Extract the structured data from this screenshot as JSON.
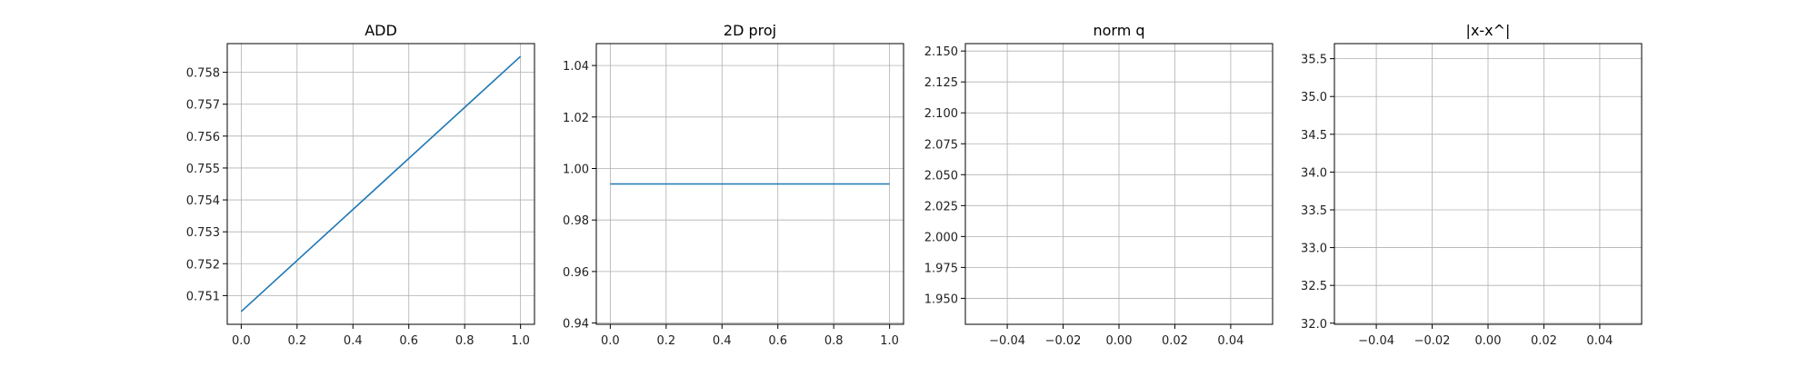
{
  "chart_data": [
    {
      "type": "line",
      "title": "ADD",
      "xlabel": "",
      "ylabel": "",
      "grid": true,
      "xlim": [
        -0.05,
        1.05
      ],
      "ylim": [
        0.7501,
        0.7589
      ],
      "x_ticks": [
        0.0,
        0.2,
        0.4,
        0.6,
        0.8,
        1.0
      ],
      "x_tick_labels": [
        "0.0",
        "0.2",
        "0.4",
        "0.6",
        "0.8",
        "1.0"
      ],
      "y_ticks": [
        0.751,
        0.752,
        0.753,
        0.754,
        0.755,
        0.756,
        0.757,
        0.758
      ],
      "y_tick_labels": [
        "0.751",
        "0.752",
        "0.753",
        "0.754",
        "0.755",
        "0.756",
        "0.757",
        "0.758"
      ],
      "series": [
        {
          "x": [
            0.0,
            1.0
          ],
          "y": [
            0.7505,
            0.7585
          ],
          "color": "#1f77b4"
        }
      ]
    },
    {
      "type": "line",
      "title": "2D proj",
      "xlabel": "",
      "ylabel": "",
      "grid": true,
      "xlim": [
        -0.05,
        1.05
      ],
      "ylim": [
        0.9395,
        1.0485
      ],
      "x_ticks": [
        0.0,
        0.2,
        0.4,
        0.6,
        0.8,
        1.0
      ],
      "x_tick_labels": [
        "0.0",
        "0.2",
        "0.4",
        "0.6",
        "0.8",
        "1.0"
      ],
      "y_ticks": [
        0.94,
        0.96,
        0.98,
        1.0,
        1.02,
        1.04
      ],
      "y_tick_labels": [
        "0.94",
        "0.96",
        "0.98",
        "1.00",
        "1.02",
        "1.04"
      ],
      "series": [
        {
          "x": [
            0.0,
            1.0
          ],
          "y": [
            0.994,
            0.994
          ],
          "color": "#1f77b4"
        }
      ]
    },
    {
      "type": "line",
      "title": "norm q",
      "xlabel": "",
      "ylabel": "",
      "grid": true,
      "xlim": [
        -0.055,
        0.055
      ],
      "ylim": [
        1.929,
        2.156
      ],
      "x_ticks": [
        -0.04,
        -0.02,
        0.0,
        0.02,
        0.04
      ],
      "x_tick_labels": [
        "−0.04",
        "−0.02",
        "0.00",
        "0.02",
        "0.04"
      ],
      "y_ticks": [
        1.95,
        1.975,
        2.0,
        2.025,
        2.05,
        2.075,
        2.1,
        2.125,
        2.15
      ],
      "y_tick_labels": [
        "1.950",
        "1.975",
        "2.000",
        "2.025",
        "2.050",
        "2.075",
        "2.100",
        "2.125",
        "2.150"
      ],
      "series": []
    },
    {
      "type": "line",
      "title": "|x-x^|",
      "xlabel": "",
      "ylabel": "",
      "grid": true,
      "xlim": [
        -0.055,
        0.055
      ],
      "ylim": [
        31.985,
        35.7
      ],
      "x_ticks": [
        -0.04,
        -0.02,
        0.0,
        0.02,
        0.04
      ],
      "x_tick_labels": [
        "−0.04",
        "−0.02",
        "0.00",
        "0.02",
        "0.04"
      ],
      "y_ticks": [
        32.0,
        32.5,
        33.0,
        33.5,
        34.0,
        34.5,
        35.0,
        35.5
      ],
      "y_tick_labels": [
        "32.0",
        "32.5",
        "33.0",
        "33.5",
        "34.0",
        "34.5",
        "35.0",
        "35.5"
      ],
      "series": []
    }
  ]
}
